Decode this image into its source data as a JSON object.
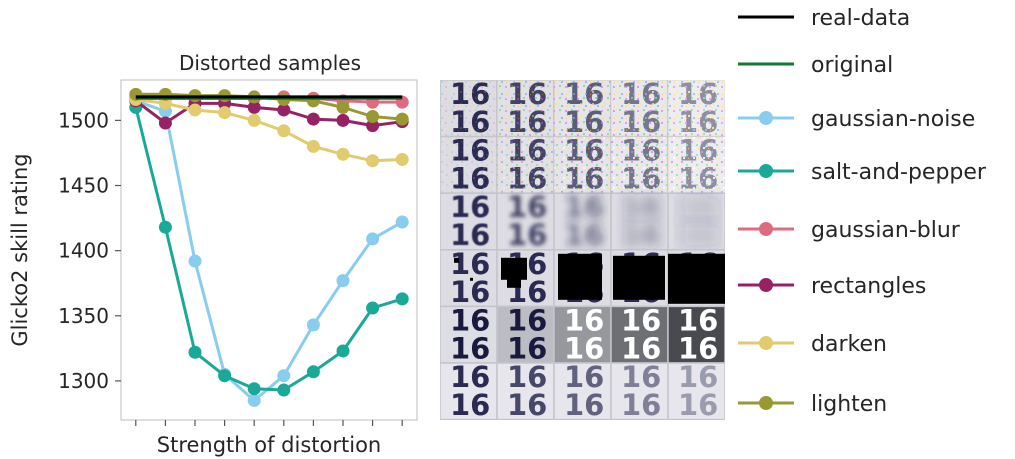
{
  "chart_data": {
    "type": "line",
    "title": "Distorted samples",
    "xlabel": "Strength of distortion",
    "ylabel": "Glicko2 skill rating",
    "ylim": [
      1270,
      1531
    ],
    "xlim": [
      -0.5,
      9.5
    ],
    "yticks": [
      1300,
      1350,
      1400,
      1450,
      1500
    ],
    "x": [
      0,
      1,
      2,
      3,
      4,
      5,
      6,
      7,
      8,
      9
    ],
    "grid": false,
    "legend_position": "right-outside",
    "series": [
      {
        "name": "real-data",
        "color": "#000000",
        "values": [
          1518,
          1518,
          1518,
          1518,
          1518,
          1518,
          1518,
          1518,
          1518,
          1518
        ]
      },
      {
        "name": "original",
        "color": "#117733",
        "values": [
          1517,
          1517,
          1517,
          1517,
          1517,
          1517,
          1517,
          1517,
          1517,
          1517
        ]
      },
      {
        "name": "gaussian-noise",
        "color": "#88CCEE",
        "marker": true,
        "values": [
          1515,
          1507,
          1392,
          1305,
          1285,
          1304,
          1343,
          1377,
          1409,
          1422
        ]
      },
      {
        "name": "salt-and-pepper",
        "color": "#1AA898",
        "marker": true,
        "values": [
          1510,
          1418,
          1322,
          1304,
          1294,
          1293,
          1307,
          1323,
          1356,
          1363
        ]
      },
      {
        "name": "gaussian-blur",
        "color": "#E06A80",
        "marker": true,
        "values": [
          1517,
          1517,
          1517,
          1517,
          1517,
          1518,
          1517,
          1515,
          1514,
          1514
        ]
      },
      {
        "name": "rectangles",
        "color": "#962264",
        "marker": true,
        "values": [
          1515,
          1498,
          1513,
          1513,
          1510,
          1508,
          1501,
          1500,
          1496,
          1499
        ]
      },
      {
        "name": "darken",
        "color": "#E2CB6D",
        "marker": true,
        "values": [
          1516,
          1513,
          1508,
          1506,
          1500,
          1492,
          1480,
          1474,
          1469,
          1470
        ]
      },
      {
        "name": "lighten",
        "color": "#999933",
        "marker": true,
        "values": [
          1520,
          1520,
          1519,
          1519,
          1518,
          1516,
          1515,
          1510,
          1503,
          1501
        ]
      }
    ]
  },
  "image_panel": {
    "title": "Distorted samples",
    "rows": [
      {
        "distortion": "gaussian-noise",
        "glyph": "16"
      },
      {
        "distortion": "salt-and-pepper",
        "glyph": "16"
      },
      {
        "distortion": "gaussian-blur",
        "glyph": "16"
      },
      {
        "distortion": "rectangles",
        "glyph": "16"
      },
      {
        "distortion": "darken",
        "glyph": "16"
      },
      {
        "distortion": "lighten",
        "glyph": "16"
      }
    ]
  }
}
